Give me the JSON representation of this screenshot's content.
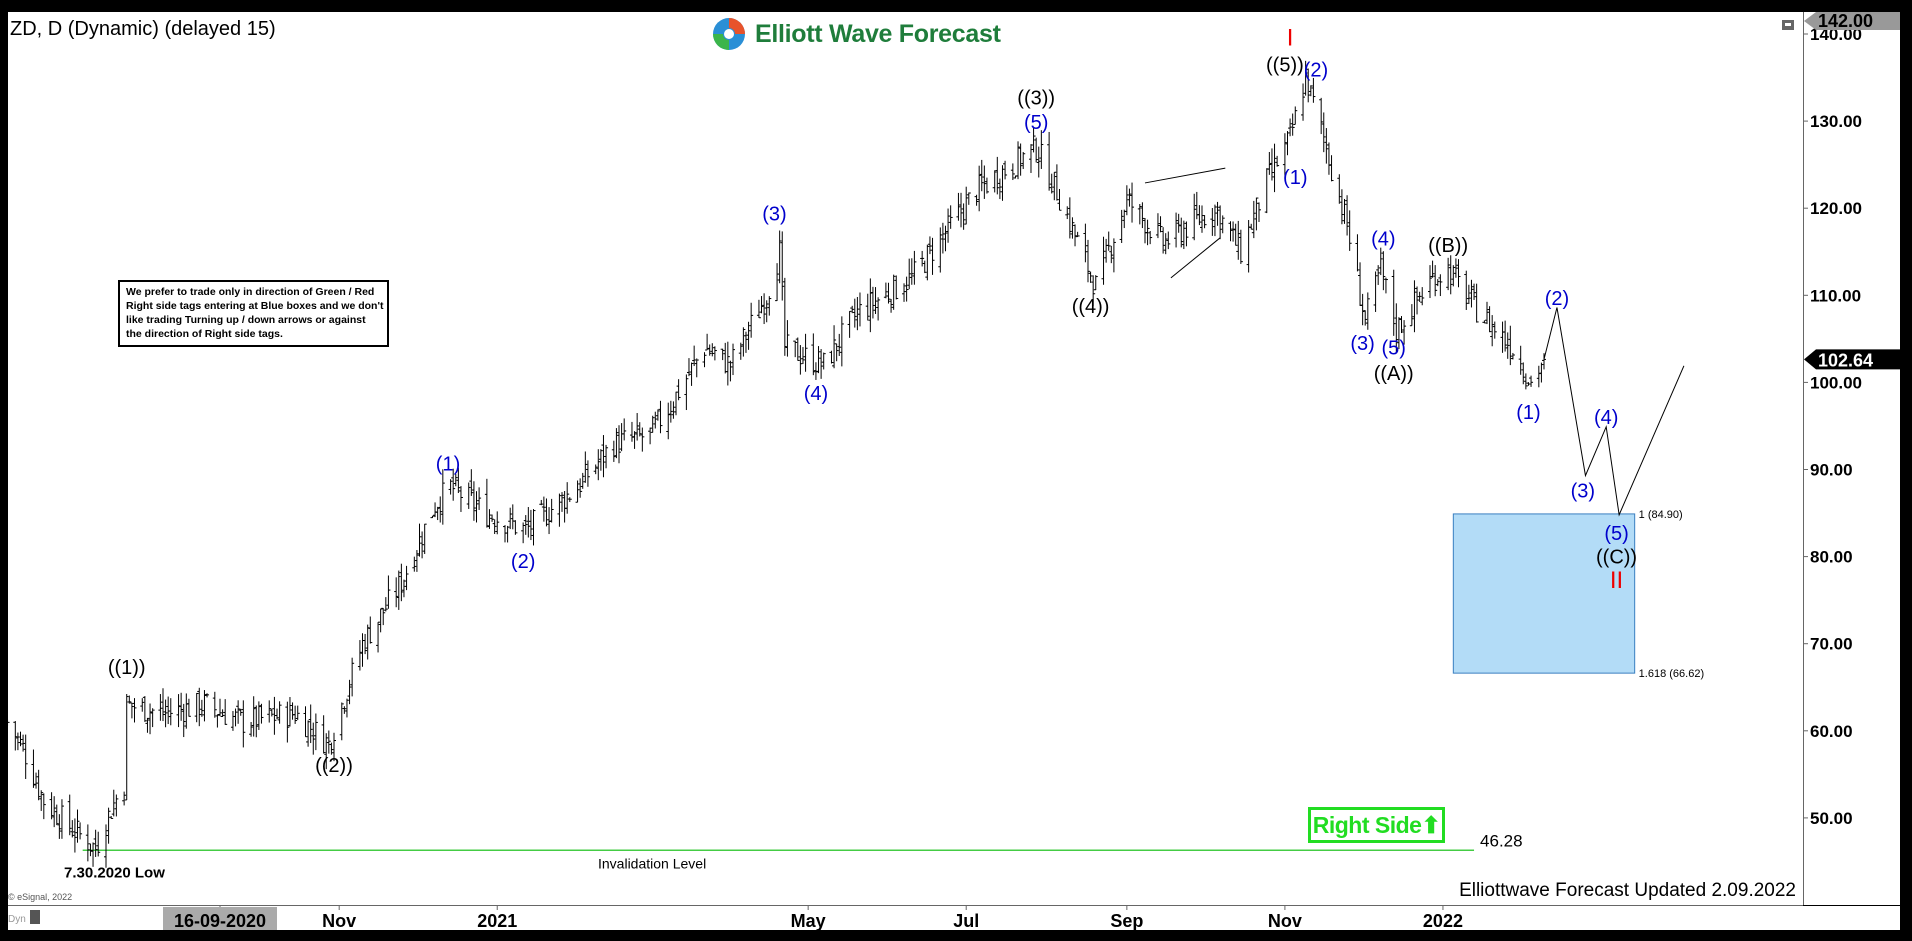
{
  "header": {
    "symbol_title": "ZD, D (Dynamic) (delayed 15)",
    "logo_text": "Elliott Wave Forecast"
  },
  "note": {
    "lines": [
      "We prefer to trade only in direction of Green / Red",
      "Right side tags entering at Blue boxes and we don't",
      "like trading Turning up / down arrows or against",
      "the direction of Right side tags."
    ]
  },
  "footer": {
    "updated": "Elliottwave Forecast Updated 2.09.2022",
    "copyright": "© eSignal, 2022",
    "dyn_label": "Dyn"
  },
  "right_side_tag": {
    "label": "Right Side",
    "icon": "arrow-up-icon",
    "color": "#22dd22"
  },
  "chart_data": {
    "type": "ohlc",
    "ylim": [
      42,
      142
    ],
    "y_ticks": [
      "50.00",
      "60.00",
      "70.00",
      "80.00",
      "90.00",
      "100.00",
      "110.00",
      "120.00",
      "130.00",
      "140.00"
    ],
    "y_tick_values": [
      50,
      60,
      70,
      80,
      90,
      100,
      110,
      120,
      130,
      140
    ],
    "x_ticks": [
      {
        "label": "16-09-2020",
        "date": "2020-09-16",
        "highlight": true
      },
      {
        "label": "Nov",
        "date": "2020-11-01"
      },
      {
        "label": "2021",
        "date": "2021-01-01"
      },
      {
        "label": "May",
        "date": "2021-05-01"
      },
      {
        "label": "Jul",
        "date": "2021-07-01"
      },
      {
        "label": "Sep",
        "date": "2021-09-01"
      },
      {
        "label": "Nov",
        "date": "2021-11-01"
      },
      {
        "label": "2022",
        "date": "2022-01-01"
      }
    ],
    "top_price_label": "142.00",
    "last_price_label": "102.64",
    "last_price": 102.64,
    "price_path": [
      [
        "2020-06-26",
        61
      ],
      [
        "2020-07-02",
        58
      ],
      [
        "2020-07-10",
        52
      ],
      [
        "2020-07-20",
        49
      ],
      [
        "2020-07-30",
        46.5
      ],
      [
        "2020-08-05",
        51
      ],
      [
        "2020-08-10",
        54
      ],
      [
        "2020-08-11",
        63
      ],
      [
        "2020-08-25",
        62
      ],
      [
        "2020-09-10",
        63
      ],
      [
        "2020-09-25",
        61
      ],
      [
        "2020-10-15",
        62
      ],
      [
        "2020-10-28",
        58.5
      ],
      [
        "2020-11-02",
        63
      ],
      [
        "2020-11-10",
        70
      ],
      [
        "2020-11-25",
        77
      ],
      [
        "2020-12-08",
        86
      ],
      [
        "2020-12-14",
        88
      ],
      [
        "2020-12-28",
        85
      ],
      [
        "2021-01-12",
        83
      ],
      [
        "2021-02-01",
        88
      ],
      [
        "2021-02-15",
        93
      ],
      [
        "2021-03-01",
        94
      ],
      [
        "2021-03-08",
        97
      ],
      [
        "2021-03-22",
        104
      ],
      [
        "2021-04-01",
        102
      ],
      [
        "2021-04-15",
        110
      ],
      [
        "2021-04-20",
        115
      ],
      [
        "2021-04-22",
        104
      ],
      [
        "2021-05-07",
        102
      ],
      [
        "2021-05-20",
        108
      ],
      [
        "2021-06-10",
        112
      ],
      [
        "2021-06-20",
        116
      ],
      [
        "2021-07-05",
        122
      ],
      [
        "2021-07-28",
        127
      ],
      [
        "2021-08-05",
        122
      ],
      [
        "2021-08-20",
        111
      ],
      [
        "2021-09-01",
        121
      ],
      [
        "2021-09-15",
        116
      ],
      [
        "2021-09-25",
        118
      ],
      [
        "2021-10-05",
        120
      ],
      [
        "2021-10-15",
        115
      ],
      [
        "2021-10-25",
        123
      ],
      [
        "2021-11-03",
        128
      ],
      [
        "2021-11-09",
        135
      ],
      [
        "2021-11-16",
        128
      ],
      [
        "2021-11-25",
        118
      ],
      [
        "2021-12-02",
        107
      ],
      [
        "2021-12-08",
        113
      ],
      [
        "2021-12-14",
        106
      ],
      [
        "2021-12-28",
        112
      ],
      [
        "2022-01-03",
        113
      ],
      [
        "2022-01-15",
        108
      ],
      [
        "2022-01-28",
        104
      ],
      [
        "2022-02-04",
        100
      ],
      [
        "2022-02-09",
        102.64
      ]
    ],
    "projection_path": [
      [
        "2022-02-09",
        102.64
      ],
      [
        "2022-02-14",
        108.6
      ],
      [
        "2022-02-25",
        89.3
      ],
      [
        "2022-03-05",
        94.9
      ],
      [
        "2022-03-10",
        84.8
      ],
      [
        "2022-04-04",
        101.9
      ]
    ],
    "triangle_lines": [
      [
        [
          "2021-09-08",
          122.9
        ],
        [
          "2021-10-09",
          124.6
        ]
      ],
      [
        [
          "2021-09-18",
          112
        ],
        [
          "2021-10-07",
          116.6
        ]
      ]
    ],
    "blue_box": {
      "from": "2022-01-05",
      "to": "2022-03-16",
      "top": 84.9,
      "bottom": 66.62,
      "top_label": "1 (84.90)",
      "bottom_label": "1.618 (66.62)",
      "fill": "#b3dcf7",
      "border": "#3a7fc0"
    },
    "invalidation": {
      "value": 46.28,
      "value_label": "46.28",
      "label": "Invalidation Level",
      "low_label": "7.30.2020 Low",
      "from": "2020-07-25",
      "to": "2022-01-13",
      "color": "#44cc44"
    },
    "wave_labels": [
      {
        "text": "((1))",
        "date": "2020-08-11",
        "price": 67.3,
        "color": "#000000"
      },
      {
        "text": "((2))",
        "date": "2020-10-30",
        "price": 56.1,
        "color": "#000000"
      },
      {
        "text": "(1)",
        "date": "2020-12-13",
        "price": 90.7,
        "color": "#0000cc"
      },
      {
        "text": "(2)",
        "date": "2021-01-11",
        "price": 79.5,
        "color": "#0000cc"
      },
      {
        "text": "(3)",
        "date": "2021-04-18",
        "price": 119.4,
        "color": "#0000cc"
      },
      {
        "text": "(4)",
        "date": "2021-05-04",
        "price": 98.8,
        "color": "#0000cc"
      },
      {
        "text": "((3))",
        "date": "2021-07-28",
        "price": 132.7,
        "color": "#000000"
      },
      {
        "text": "(5)",
        "date": "2021-07-28",
        "price": 129.9,
        "color": "#0000cc"
      },
      {
        "text": "((4))",
        "date": "2021-08-18",
        "price": 108.8,
        "color": "#000000"
      },
      {
        "text": "((5))",
        "date": "2021-11-01",
        "price": 136.5,
        "color": "#000000"
      },
      {
        "text": "(2)",
        "date": "2021-11-13",
        "price": 135.9,
        "color": "#0000cc"
      },
      {
        "text": "(1)",
        "date": "2021-11-05",
        "price": 123.6,
        "color": "#0000cc"
      },
      {
        "text": "(4)",
        "date": "2021-12-09",
        "price": 116.5,
        "color": "#0000cc"
      },
      {
        "text": "(3)",
        "date": "2021-12-01",
        "price": 104.5,
        "color": "#0000cc"
      },
      {
        "text": "(5)",
        "date": "2021-12-13",
        "price": 104.0,
        "color": "#0000cc"
      },
      {
        "text": "((A))",
        "date": "2021-12-13",
        "price": 101.1,
        "color": "#000000"
      },
      {
        "text": "((B))",
        "date": "2022-01-03",
        "price": 115.8,
        "color": "#000000"
      },
      {
        "text": "(1)",
        "date": "2022-02-03",
        "price": 96.6,
        "color": "#0000cc"
      },
      {
        "text": "(2)",
        "date": "2022-02-14",
        "price": 109.7,
        "color": "#0000cc"
      },
      {
        "text": "(3)",
        "date": "2022-02-24",
        "price": 87.6,
        "color": "#0000cc"
      },
      {
        "text": "(4)",
        "date": "2022-03-05",
        "price": 96.0,
        "color": "#0000cc"
      },
      {
        "text": "(5)",
        "date": "2022-03-09",
        "price": 82.7,
        "color": "#0000cc"
      },
      {
        "text": "((C))",
        "date": "2022-03-09",
        "price": 80.0,
        "color": "#000000"
      }
    ],
    "degree_marks": [
      {
        "text": "I",
        "date": "2021-11-03",
        "price": 139.7,
        "color": "#ee0000"
      },
      {
        "text": "II",
        "date": "2022-03-09",
        "price": 77.4,
        "color": "#ee0000"
      }
    ]
  }
}
